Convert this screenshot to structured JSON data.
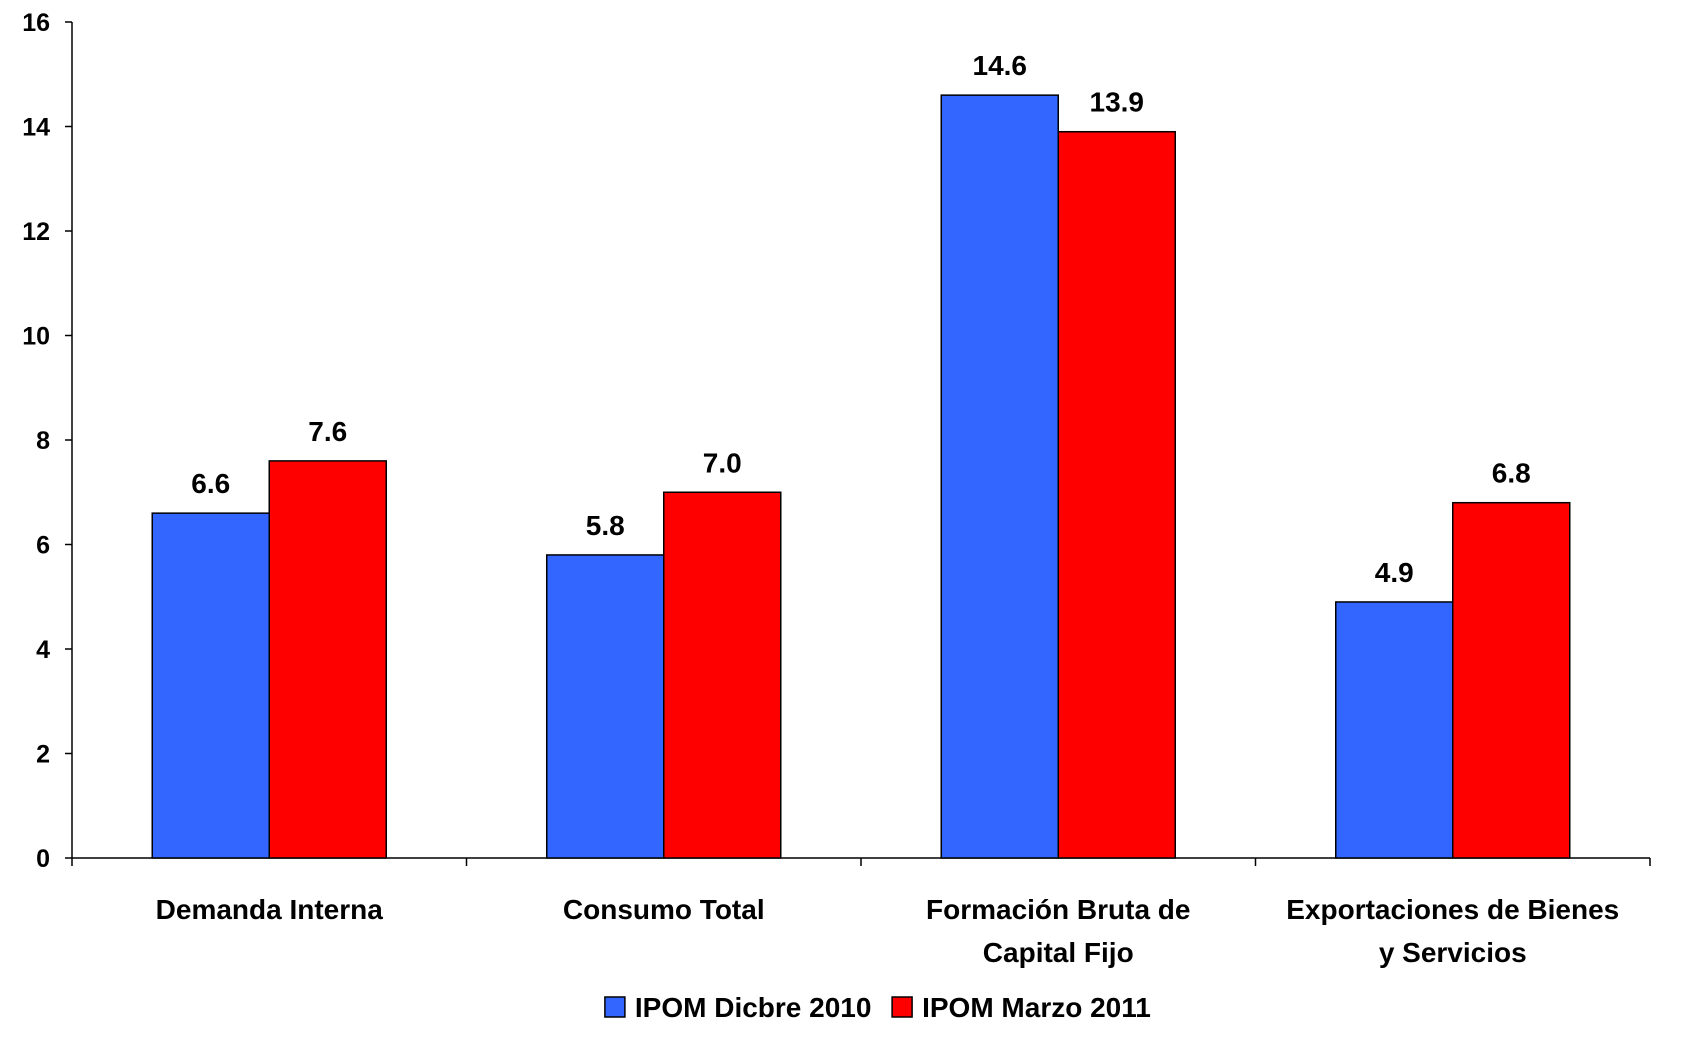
{
  "chart_data": {
    "type": "bar",
    "categories": [
      [
        "Demanda Interna"
      ],
      [
        "Consumo Total"
      ],
      [
        "Formación Bruta de",
        "Capital Fijo"
      ],
      [
        "Exportaciones de Bienes",
        "y Servicios"
      ]
    ],
    "series": [
      {
        "name": "IPOM Dicbre 2010",
        "color": "#3366FF",
        "values": [
          6.6,
          5.8,
          14.6,
          4.9
        ],
        "labels": [
          "6.6",
          "5.8",
          "14.6",
          "4.9"
        ]
      },
      {
        "name": "IPOM Marzo 2011",
        "color": "#FF0000",
        "values": [
          7.6,
          7.0,
          13.9,
          6.8
        ],
        "labels": [
          "7.6",
          "7.0",
          "13.9",
          "6.8"
        ]
      }
    ],
    "ylim": [
      0,
      16
    ],
    "yticks": [
      0,
      2,
      4,
      6,
      8,
      10,
      12,
      14,
      16
    ],
    "grid": false,
    "legend_position": "bottom"
  }
}
